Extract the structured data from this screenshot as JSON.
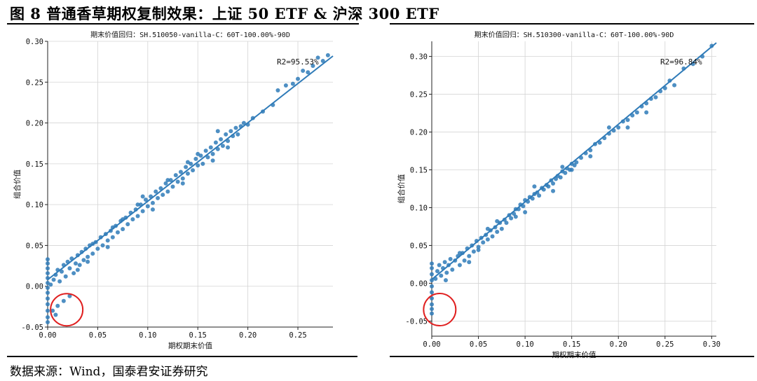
{
  "figure": {
    "title": "图 8 普通香草期权复制效果：上证 50 ETF & 沪深 300 ETF",
    "source": "数据来源：Wind，国泰君安证券研究"
  },
  "chart_data": [
    {
      "type": "scatter",
      "title": "期末价值回归：SH.510050-vanilla-C：60T-100.00%-90D",
      "xlabel": "期权期末价值",
      "ylabel": "组合价值",
      "annotation": "R2=95.53%",
      "xlim": [
        0.0,
        0.285
      ],
      "ylim": [
        -0.05,
        0.3
      ],
      "xticks": [
        "0.00",
        "0.05",
        "0.10",
        "0.15",
        "0.20",
        "0.25"
      ],
      "yticks": [
        "-0.05",
        "0.00",
        "0.05",
        "0.10",
        "0.15",
        "0.20",
        "0.25",
        "0.30"
      ],
      "grid": true,
      "highlight": {
        "shape": "circle",
        "color": "#e02020",
        "x": 0.012,
        "y": -0.027
      },
      "regression_line": {
        "x": [
          0.0,
          0.285
        ],
        "y": [
          0.008,
          0.282
        ]
      },
      "points": [
        [
          0.0,
          -0.044
        ],
        [
          0.0,
          -0.038
        ],
        [
          0.0,
          -0.03
        ],
        [
          0.0,
          -0.022
        ],
        [
          0.0,
          -0.015
        ],
        [
          0.0,
          -0.008
        ],
        [
          0.0,
          -0.002
        ],
        [
          0.0,
          0.004
        ],
        [
          0.0,
          0.01
        ],
        [
          0.0,
          0.016
        ],
        [
          0.0,
          0.022
        ],
        [
          0.0,
          0.028
        ],
        [
          0.0,
          0.033
        ],
        [
          0.005,
          -0.03
        ],
        [
          0.01,
          -0.024
        ],
        [
          0.016,
          -0.018
        ],
        [
          0.022,
          -0.012
        ],
        [
          0.008,
          -0.035
        ],
        [
          0.003,
          0.002
        ],
        [
          0.006,
          0.008
        ],
        [
          0.008,
          0.014
        ],
        [
          0.01,
          0.02
        ],
        [
          0.012,
          0.006
        ],
        [
          0.014,
          0.018
        ],
        [
          0.016,
          0.026
        ],
        [
          0.018,
          0.012
        ],
        [
          0.02,
          0.03
        ],
        [
          0.022,
          0.022
        ],
        [
          0.024,
          0.034
        ],
        [
          0.026,
          0.016
        ],
        [
          0.028,
          0.028
        ],
        [
          0.03,
          0.038
        ],
        [
          0.032,
          0.026
        ],
        [
          0.034,
          0.042
        ],
        [
          0.036,
          0.032
        ],
        [
          0.038,
          0.046
        ],
        [
          0.04,
          0.036
        ],
        [
          0.042,
          0.05
        ],
        [
          0.045,
          0.04
        ],
        [
          0.048,
          0.054
        ],
        [
          0.05,
          0.046
        ],
        [
          0.053,
          0.06
        ],
        [
          0.055,
          0.05
        ],
        [
          0.058,
          0.064
        ],
        [
          0.06,
          0.056
        ],
        [
          0.063,
          0.068
        ],
        [
          0.065,
          0.06
        ],
        [
          0.068,
          0.074
        ],
        [
          0.07,
          0.066
        ],
        [
          0.073,
          0.08
        ],
        [
          0.075,
          0.07
        ],
        [
          0.078,
          0.084
        ],
        [
          0.08,
          0.076
        ],
        [
          0.083,
          0.09
        ],
        [
          0.085,
          0.082
        ],
        [
          0.088,
          0.094
        ],
        [
          0.09,
          0.086
        ],
        [
          0.093,
          0.1
        ],
        [
          0.095,
          0.092
        ],
        [
          0.098,
          0.106
        ],
        [
          0.1,
          0.098
        ],
        [
          0.103,
          0.11
        ],
        [
          0.105,
          0.102
        ],
        [
          0.108,
          0.116
        ],
        [
          0.11,
          0.108
        ],
        [
          0.113,
          0.12
        ],
        [
          0.115,
          0.112
        ],
        [
          0.118,
          0.126
        ],
        [
          0.12,
          0.116
        ],
        [
          0.123,
          0.13
        ],
        [
          0.125,
          0.122
        ],
        [
          0.128,
          0.136
        ],
        [
          0.13,
          0.128
        ],
        [
          0.133,
          0.14
        ],
        [
          0.135,
          0.132
        ],
        [
          0.138,
          0.146
        ],
        [
          0.14,
          0.138
        ],
        [
          0.143,
          0.15
        ],
        [
          0.145,
          0.142
        ],
        [
          0.148,
          0.156
        ],
        [
          0.15,
          0.148
        ],
        [
          0.153,
          0.16
        ],
        [
          0.155,
          0.15
        ],
        [
          0.158,
          0.166
        ],
        [
          0.16,
          0.158
        ],
        [
          0.163,
          0.17
        ],
        [
          0.165,
          0.162
        ],
        [
          0.168,
          0.176
        ],
        [
          0.17,
          0.168
        ],
        [
          0.173,
          0.18
        ],
        [
          0.175,
          0.172
        ],
        [
          0.178,
          0.186
        ],
        [
          0.18,
          0.178
        ],
        [
          0.183,
          0.19
        ],
        [
          0.185,
          0.184
        ],
        [
          0.188,
          0.194
        ],
        [
          0.19,
          0.186
        ],
        [
          0.193,
          0.196
        ],
        [
          0.196,
          0.2
        ],
        [
          0.2,
          0.198
        ],
        [
          0.205,
          0.206
        ],
        [
          0.215,
          0.214
        ],
        [
          0.225,
          0.222
        ],
        [
          0.23,
          0.24
        ],
        [
          0.238,
          0.246
        ],
        [
          0.245,
          0.248
        ],
        [
          0.25,
          0.254
        ],
        [
          0.255,
          0.264
        ],
        [
          0.26,
          0.262
        ],
        [
          0.265,
          0.27
        ],
        [
          0.27,
          0.28
        ],
        [
          0.275,
          0.276
        ],
        [
          0.28,
          0.283
        ],
        [
          0.03,
          0.02
        ],
        [
          0.045,
          0.052
        ],
        [
          0.06,
          0.048
        ],
        [
          0.075,
          0.082
        ],
        [
          0.09,
          0.1
        ],
        [
          0.105,
          0.094
        ],
        [
          0.12,
          0.13
        ],
        [
          0.135,
          0.126
        ],
        [
          0.15,
          0.162
        ],
        [
          0.165,
          0.154
        ],
        [
          0.18,
          0.17
        ],
        [
          0.17,
          0.19
        ],
        [
          0.14,
          0.152
        ],
        [
          0.095,
          0.11
        ],
        [
          0.065,
          0.072
        ],
        [
          0.04,
          0.03
        ]
      ]
    },
    {
      "type": "scatter",
      "title": "期末价值回归：SH.510300-vanilla-C：60T-100.00%-90D",
      "xlabel": "期权期末价值",
      "ylabel": "组合价值",
      "annotation": "R2=96.84%",
      "xlim": [
        0.0,
        0.305
      ],
      "ylim": [
        -0.07,
        0.32
      ],
      "xticks": [
        "0.00",
        "0.05",
        "0.10",
        "0.15",
        "0.20",
        "0.25",
        "0.30"
      ],
      "yticks": [
        "-0.05",
        "0.00",
        "0.05",
        "0.10",
        "0.15",
        "0.20",
        "0.25",
        "0.30"
      ],
      "grid": true,
      "highlight": {
        "shape": "circle",
        "color": "#e02020",
        "x": 0.001,
        "y": -0.033
      },
      "regression_line": {
        "x": [
          0.0,
          0.305
        ],
        "y": [
          0.005,
          0.318
        ]
      },
      "points": [
        [
          0.0,
          -0.04
        ],
        [
          0.0,
          -0.034
        ],
        [
          0.0,
          -0.028
        ],
        [
          0.0,
          -0.02
        ],
        [
          0.0,
          -0.012
        ],
        [
          0.0,
          -0.004
        ],
        [
          0.0,
          0.004
        ],
        [
          0.0,
          0.012
        ],
        [
          0.0,
          0.02
        ],
        [
          0.0,
          0.026
        ],
        [
          0.004,
          0.006
        ],
        [
          0.006,
          0.016
        ],
        [
          0.008,
          0.024
        ],
        [
          0.01,
          0.01
        ],
        [
          0.012,
          0.02
        ],
        [
          0.014,
          0.028
        ],
        [
          0.016,
          0.014
        ],
        [
          0.018,
          0.024
        ],
        [
          0.02,
          0.032
        ],
        [
          0.022,
          0.018
        ],
        [
          0.025,
          0.03
        ],
        [
          0.028,
          0.036
        ],
        [
          0.03,
          0.024
        ],
        [
          0.033,
          0.04
        ],
        [
          0.035,
          0.03
        ],
        [
          0.038,
          0.046
        ],
        [
          0.04,
          0.036
        ],
        [
          0.043,
          0.05
        ],
        [
          0.045,
          0.042
        ],
        [
          0.048,
          0.056
        ],
        [
          0.05,
          0.048
        ],
        [
          0.053,
          0.06
        ],
        [
          0.055,
          0.054
        ],
        [
          0.058,
          0.064
        ],
        [
          0.06,
          0.058
        ],
        [
          0.063,
          0.07
        ],
        [
          0.065,
          0.062
        ],
        [
          0.068,
          0.074
        ],
        [
          0.07,
          0.068
        ],
        [
          0.073,
          0.08
        ],
        [
          0.075,
          0.072
        ],
        [
          0.078,
          0.084
        ],
        [
          0.08,
          0.08
        ],
        [
          0.083,
          0.09
        ],
        [
          0.085,
          0.086
        ],
        [
          0.088,
          0.092
        ],
        [
          0.09,
          0.098
        ],
        [
          0.093,
          0.098
        ],
        [
          0.095,
          0.104
        ],
        [
          0.098,
          0.102
        ],
        [
          0.1,
          0.11
        ],
        [
          0.103,
          0.108
        ],
        [
          0.105,
          0.114
        ],
        [
          0.108,
          0.112
        ],
        [
          0.11,
          0.118
        ],
        [
          0.113,
          0.12
        ],
        [
          0.115,
          0.116
        ],
        [
          0.118,
          0.126
        ],
        [
          0.12,
          0.124
        ],
        [
          0.123,
          0.13
        ],
        [
          0.125,
          0.128
        ],
        [
          0.128,
          0.136
        ],
        [
          0.13,
          0.132
        ],
        [
          0.133,
          0.138
        ],
        [
          0.135,
          0.142
        ],
        [
          0.138,
          0.14
        ],
        [
          0.14,
          0.148
        ],
        [
          0.143,
          0.146
        ],
        [
          0.145,
          0.152
        ],
        [
          0.148,
          0.15
        ],
        [
          0.15,
          0.158
        ],
        [
          0.153,
          0.156
        ],
        [
          0.155,
          0.16
        ],
        [
          0.16,
          0.166
        ],
        [
          0.165,
          0.172
        ],
        [
          0.17,
          0.176
        ],
        [
          0.175,
          0.184
        ],
        [
          0.18,
          0.186
        ],
        [
          0.185,
          0.192
        ],
        [
          0.19,
          0.198
        ],
        [
          0.195,
          0.202
        ],
        [
          0.2,
          0.206
        ],
        [
          0.205,
          0.214
        ],
        [
          0.21,
          0.216
        ],
        [
          0.215,
          0.222
        ],
        [
          0.22,
          0.226
        ],
        [
          0.225,
          0.234
        ],
        [
          0.23,
          0.238
        ],
        [
          0.235,
          0.244
        ],
        [
          0.24,
          0.246
        ],
        [
          0.245,
          0.254
        ],
        [
          0.25,
          0.258
        ],
        [
          0.255,
          0.268
        ],
        [
          0.26,
          0.262
        ],
        [
          0.27,
          0.284
        ],
        [
          0.28,
          0.29
        ],
        [
          0.29,
          0.3
        ],
        [
          0.3,
          0.314
        ],
        [
          0.015,
          0.004
        ],
        [
          0.03,
          0.04
        ],
        [
          0.05,
          0.044
        ],
        [
          0.07,
          0.082
        ],
        [
          0.09,
          0.088
        ],
        [
          0.11,
          0.128
        ],
        [
          0.13,
          0.122
        ],
        [
          0.15,
          0.15
        ],
        [
          0.17,
          0.168
        ],
        [
          0.19,
          0.206
        ],
        [
          0.21,
          0.206
        ],
        [
          0.23,
          0.226
        ],
        [
          0.06,
          0.072
        ],
        [
          0.1,
          0.094
        ],
        [
          0.14,
          0.154
        ],
        [
          0.04,
          0.028
        ]
      ]
    }
  ]
}
